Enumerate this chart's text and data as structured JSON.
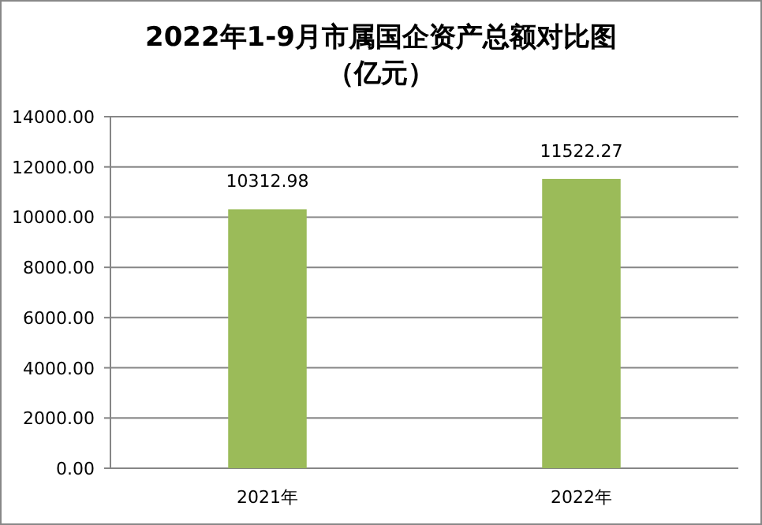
{
  "chart_data": {
    "type": "bar",
    "title": "2022年1-9月市属国企资产总额对比图",
    "subtitle": "（亿元）",
    "categories": [
      "2021年",
      "2022年"
    ],
    "values": [
      10312.98,
      11522.27
    ],
    "color": "#9bbb59",
    "data_labels": true,
    "ylim": [
      0,
      14000
    ],
    "yticks": [
      {
        "value": 0,
        "label": "0.00"
      },
      {
        "value": 2000,
        "label": "2000.00"
      },
      {
        "value": 4000,
        "label": "4000.00"
      },
      {
        "value": 6000,
        "label": "6000.00"
      },
      {
        "value": 8000,
        "label": "8000.00"
      },
      {
        "value": 10000,
        "label": "10000.00"
      },
      {
        "value": 12000,
        "label": "12000.00"
      },
      {
        "value": 14000,
        "label": "14000.00"
      }
    ],
    "grid": "y"
  }
}
